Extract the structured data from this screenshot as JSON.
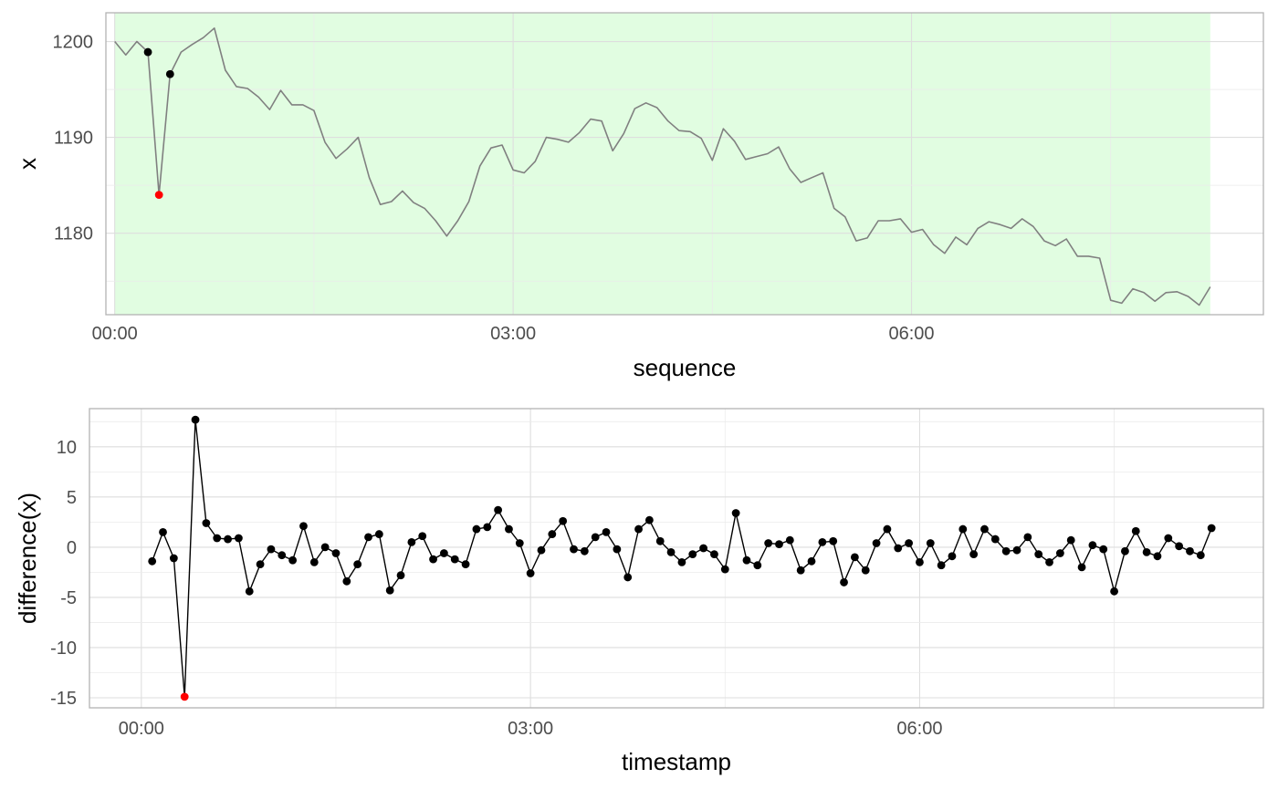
{
  "chart_data": [
    {
      "type": "line",
      "xlabel": "sequence",
      "ylabel": "x",
      "x_unit": "time",
      "x_ticks": [
        "00:00",
        "03:00",
        "06:00"
      ],
      "x_tick_values": [
        0,
        180,
        360
      ],
      "xlim": [
        -4,
        519
      ],
      "y_ticks": [
        1180,
        1190,
        1200
      ],
      "ylim": [
        1171.5,
        1203.0
      ],
      "grid": true,
      "highlight_band": {
        "x_from": 0,
        "x_to": 495,
        "color": "#e1fde1"
      },
      "line_color": "#808080",
      "x_step_minutes": 5,
      "series": [
        {
          "values": [
            1200.0,
            1198.6,
            1200.0,
            1198.9,
            1184.0,
            1196.6,
            1198.9,
            1199.7,
            1200.4,
            1201.4,
            1197.0,
            1195.3,
            1195.1,
            1194.2,
            1192.9,
            1194.9,
            1193.4,
            1193.4,
            1192.8,
            1189.5,
            1187.8,
            1188.8,
            1190.0,
            1185.8,
            1183.0,
            1183.3,
            1184.4,
            1183.2,
            1182.6,
            1181.3,
            1179.7,
            1181.3,
            1183.3,
            1187.0,
            1188.9,
            1189.2,
            1186.6,
            1186.3,
            1187.5,
            1190.0,
            1189.8,
            1189.5,
            1190.5,
            1191.9,
            1191.7,
            1188.6,
            1190.4,
            1193.0,
            1193.6,
            1193.1,
            1191.7,
            1190.7,
            1190.6,
            1189.9,
            1187.6,
            1190.9,
            1189.6,
            1187.7,
            1188.0,
            1188.3,
            1189.0,
            1186.7,
            1185.3,
            1185.8,
            1186.3,
            1182.6,
            1181.7,
            1179.2,
            1179.5,
            1181.3,
            1181.3,
            1181.5,
            1180.1,
            1180.4,
            1178.8,
            1177.9,
            1179.6,
            1178.8,
            1180.5,
            1181.2,
            1180.9,
            1180.5,
            1181.5,
            1180.7,
            1179.2,
            1178.7,
            1179.4,
            1177.6,
            1177.6,
            1177.4,
            1173.0,
            1172.7,
            1174.2,
            1173.8,
            1172.9,
            1173.8,
            1173.9,
            1173.4,
            1172.5,
            1174.4
          ]
        }
      ],
      "highlighted_points": [
        {
          "index": 3,
          "value": 1198.9,
          "color": "#000000"
        },
        {
          "index": 4,
          "value": 1184.0,
          "color": "#ff0000"
        },
        {
          "index": 5,
          "value": 1196.6,
          "color": "#000000"
        }
      ]
    },
    {
      "type": "line",
      "xlabel": "timestamp",
      "ylabel": "difference(x)",
      "x_unit": "time",
      "x_ticks": [
        "00:00",
        "03:00",
        "06:00"
      ],
      "x_tick_values": [
        0,
        180,
        360
      ],
      "xlim": [
        -24,
        519
      ],
      "y_ticks": [
        -15,
        -10,
        -5,
        0,
        5,
        10
      ],
      "ylim": [
        -16.0,
        13.8
      ],
      "grid": true,
      "line_color": "#000000",
      "point_color": "#000000",
      "x_start_minute": 5,
      "x_step_minutes": 5,
      "series": [
        {
          "values": [
            -1.4,
            1.5,
            -1.1,
            -14.9,
            12.7,
            2.4,
            0.9,
            0.8,
            0.9,
            -4.4,
            -1.7,
            -0.2,
            -0.8,
            -1.3,
            2.1,
            -1.5,
            0.0,
            -0.6,
            -3.4,
            -1.7,
            1.0,
            1.3,
            -4.3,
            -2.8,
            0.5,
            1.1,
            -1.2,
            -0.6,
            -1.2,
            -1.7,
            1.8,
            2.0,
            3.7,
            1.8,
            0.4,
            -2.6,
            -0.3,
            1.3,
            2.6,
            -0.2,
            -0.4,
            1.0,
            1.5,
            -0.2,
            -3.0,
            1.8,
            2.7,
            0.6,
            -0.5,
            -1.5,
            -0.7,
            -0.1,
            -0.7,
            -2.2,
            3.4,
            -1.3,
            -1.8,
            0.4,
            0.3,
            0.7,
            -2.3,
            -1.4,
            0.5,
            0.6,
            -3.5,
            -1.0,
            -2.3,
            0.4,
            1.8,
            -0.1,
            0.4,
            -1.5,
            0.4,
            -1.8,
            -0.9,
            1.8,
            -0.7,
            1.8,
            0.8,
            -0.4,
            -0.3,
            1.0,
            -0.7,
            -1.5,
            -0.6,
            0.7,
            -2.0,
            0.2,
            -0.2,
            -4.4,
            -0.4,
            1.6,
            -0.5,
            -0.9,
            0.9,
            0.1,
            -0.4,
            -0.8,
            1.9
          ]
        }
      ],
      "highlighted_points": [
        {
          "index": 3,
          "value": -14.9,
          "color": "#ff0000"
        }
      ]
    }
  ]
}
